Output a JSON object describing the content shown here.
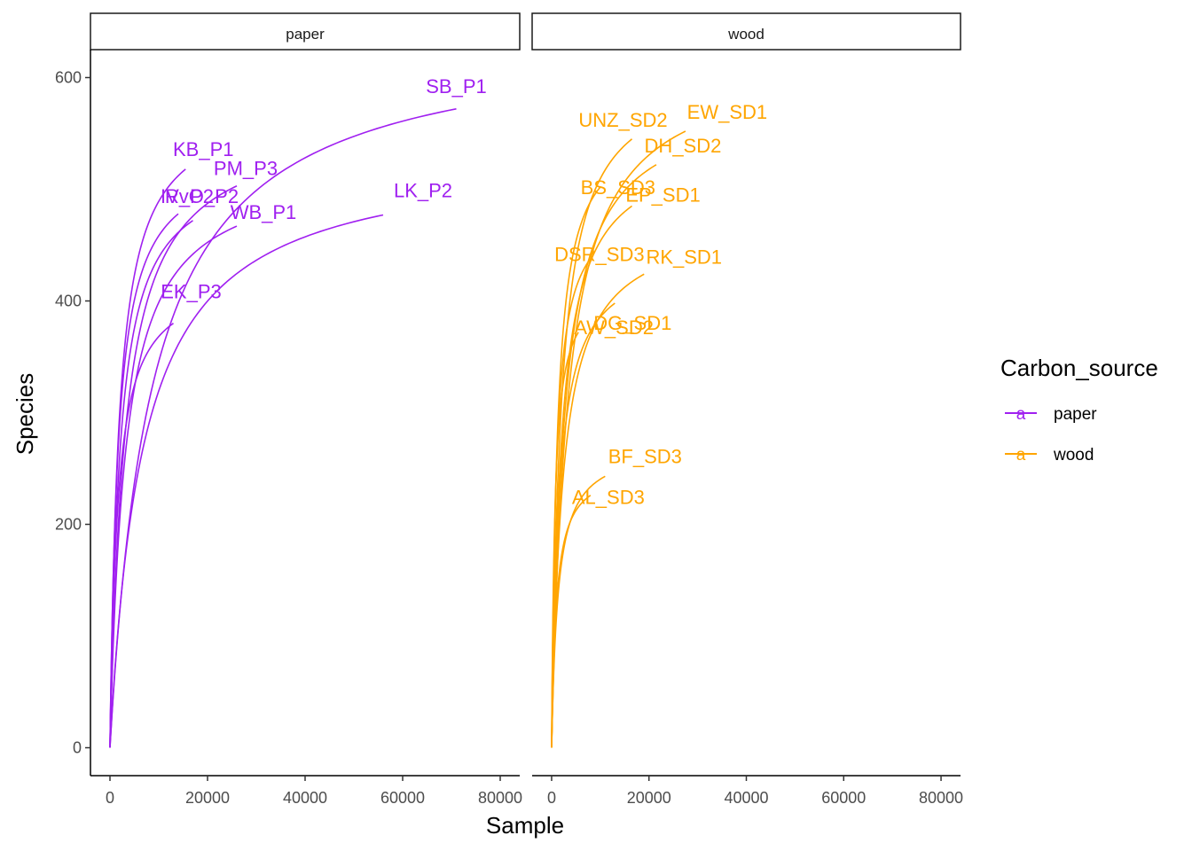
{
  "chart_data": {
    "type": "line",
    "xlabel": "Sample",
    "ylabel": "Species",
    "xlim": [
      -4000,
      84000
    ],
    "ylim": [
      -25,
      625
    ],
    "x_ticks": [
      0,
      20000,
      40000,
      60000,
      80000
    ],
    "y_ticks": [
      0,
      200,
      400,
      600
    ],
    "grid": false,
    "legend": {
      "title": "Carbon_source",
      "position": "right",
      "key_glyph": "a",
      "entries": [
        {
          "name": "paper",
          "color": "#A020F0"
        },
        {
          "name": "wood",
          "color": "#FFA500"
        }
      ]
    },
    "panels": [
      {
        "strip": "paper",
        "color": "#A020F0",
        "series": [
          {
            "name": "SB_P1",
            "x_end": 71000,
            "y_end": 572
          },
          {
            "name": "KB_P1",
            "x_end": 15500,
            "y_end": 518
          },
          {
            "name": "PM_P3",
            "x_end": 26000,
            "y_end": 503
          },
          {
            "name": "IV_P2",
            "x_end": 14000,
            "y_end": 478
          },
          {
            "name": "LK_P2",
            "x_end": 56000,
            "y_end": 477
          },
          {
            "name": "RvO_P2",
            "x_end": 17000,
            "y_end": 472
          },
          {
            "name": "WB_P1",
            "x_end": 26000,
            "y_end": 467
          },
          {
            "name": "EK_P3",
            "x_end": 13000,
            "y_end": 380
          }
        ]
      },
      {
        "strip": "wood",
        "color": "#FFA500",
        "series": [
          {
            "name": "EW_SD1",
            "x_end": 27500,
            "y_end": 552
          },
          {
            "name": "UNZ_SD2",
            "x_end": 16500,
            "y_end": 545
          },
          {
            "name": "DH_SD2",
            "x_end": 21500,
            "y_end": 522
          },
          {
            "name": "BS_SD3",
            "x_end": 10000,
            "y_end": 502
          },
          {
            "name": "EP_SD1",
            "x_end": 16500,
            "y_end": 485
          },
          {
            "name": "DSR_SD3",
            "x_end": 8000,
            "y_end": 438
          },
          {
            "name": "RK_SD1",
            "x_end": 19000,
            "y_end": 424
          },
          {
            "name": "DG_SD1",
            "x_end": 13000,
            "y_end": 398
          },
          {
            "name": "AW_SD2",
            "x_end": 5500,
            "y_end": 372
          },
          {
            "name": "BF_SD3",
            "x_end": 11000,
            "y_end": 243
          },
          {
            "name": "AL_SD3",
            "x_end": 8000,
            "y_end": 226
          }
        ]
      }
    ]
  }
}
